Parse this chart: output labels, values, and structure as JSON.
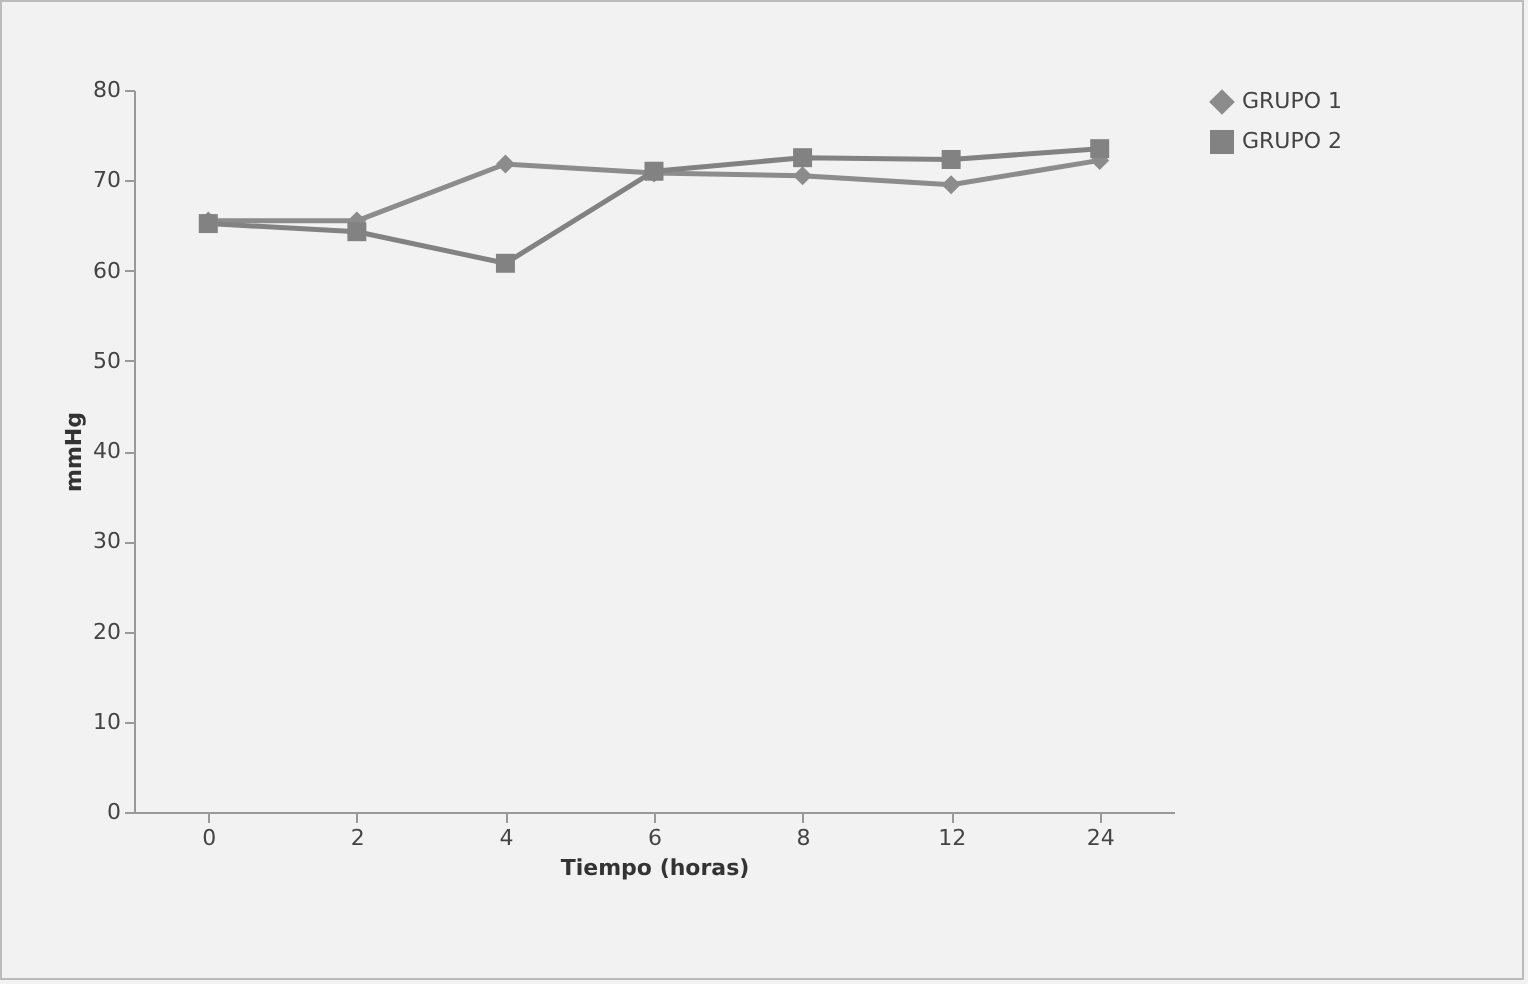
{
  "chart_data": {
    "type": "line",
    "xlabel": "Tiempo (horas)",
    "ylabel": "mmHg",
    "categories": [
      "0",
      "2",
      "4",
      "6",
      "8",
      "12",
      "24"
    ],
    "series": [
      {
        "name": "GRUPO 1",
        "color": "#8c8c8c",
        "marker": "diamond",
        "values": [
          65.5,
          65.5,
          71.8,
          70.8,
          70.5,
          69.5,
          72.2
        ]
      },
      {
        "name": "GRUPO 2",
        "color": "#828282",
        "marker": "square",
        "values": [
          65.2,
          64.3,
          60.8,
          71,
          72.5,
          72.3,
          73.5
        ]
      }
    ],
    "ylim": [
      0,
      80
    ],
    "yticks": [
      0,
      10,
      20,
      30,
      40,
      50,
      60,
      70,
      80
    ],
    "grid": false,
    "legend": "right"
  }
}
